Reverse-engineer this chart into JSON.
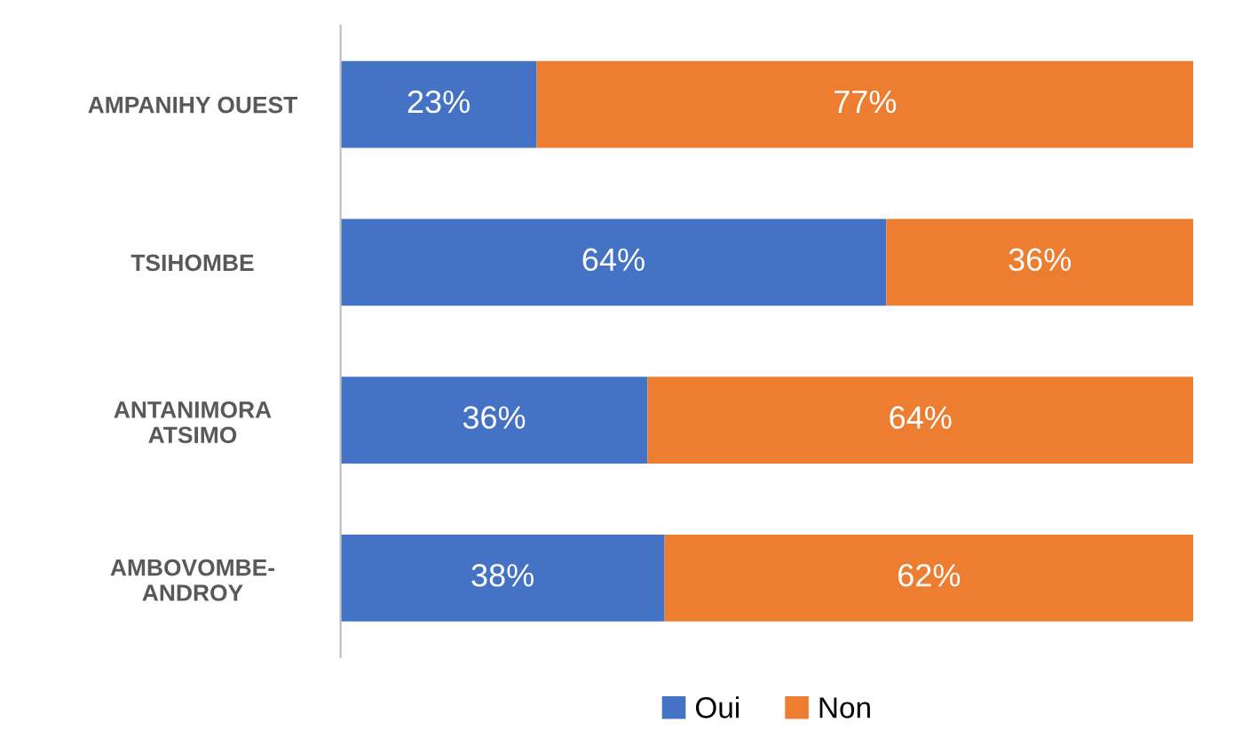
{
  "chart_data": {
    "type": "bar",
    "orientation": "horizontal",
    "stacked": true,
    "legend": "bottom",
    "grid": false,
    "categories": [
      "AMPANIHY OUEST",
      "TSIHOMBE",
      "ANTANIMORA\nATSIMO",
      "AMBOVOMBE-\nANDROY"
    ],
    "series": [
      {
        "name": "Oui",
        "color": "#4472c4",
        "values": [
          23,
          64,
          36,
          38
        ],
        "value_labels": [
          "23%",
          "64%",
          "36%",
          "38%"
        ]
      },
      {
        "name": "Non",
        "color": "#ed7d31",
        "values": [
          77,
          36,
          64,
          62
        ],
        "value_labels": [
          "77%",
          "36%",
          "64%",
          "62%"
        ]
      }
    ]
  }
}
